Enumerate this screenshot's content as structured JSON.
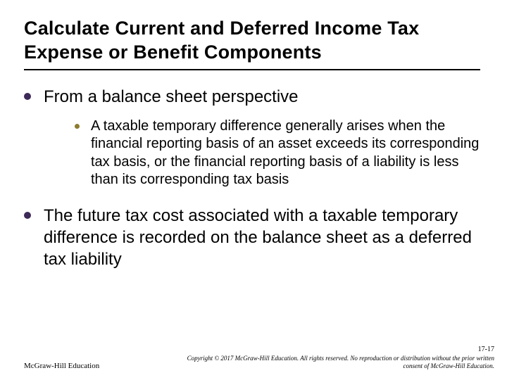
{
  "colors": {
    "bullet_level1": "#3d2a58",
    "bullet_level2": "#8d7b2e",
    "text": "#000000",
    "background": "#ffffff",
    "rule": "#000000"
  },
  "typography": {
    "title_fontsize": 27,
    "level1_fontsize": 24,
    "level2_fontsize": 20,
    "footer_fontsize": 9,
    "title_weight": "bold"
  },
  "title": "Calculate Current and Deferred Income Tax Expense or Benefit Components",
  "body": {
    "item1": {
      "text": "From a balance sheet perspective",
      "sub1": "A taxable temporary difference generally arises when the financial reporting basis of an asset exceeds its corresponding tax basis, or the financial reporting basis of a liability is less than its corresponding tax basis"
    },
    "item2": {
      "text": "The future tax cost associated with a taxable temporary difference is recorded on the balance sheet as a deferred tax liability"
    }
  },
  "footer": {
    "page_number": "17-17",
    "copyright_line1": "Copyright © 2017 McGraw-Hill Education. All rights reserved. No reproduction or distribution without the prior written",
    "copyright_line2": "consent of McGraw-Hill Education.",
    "publisher": "McGraw-Hill Education"
  }
}
